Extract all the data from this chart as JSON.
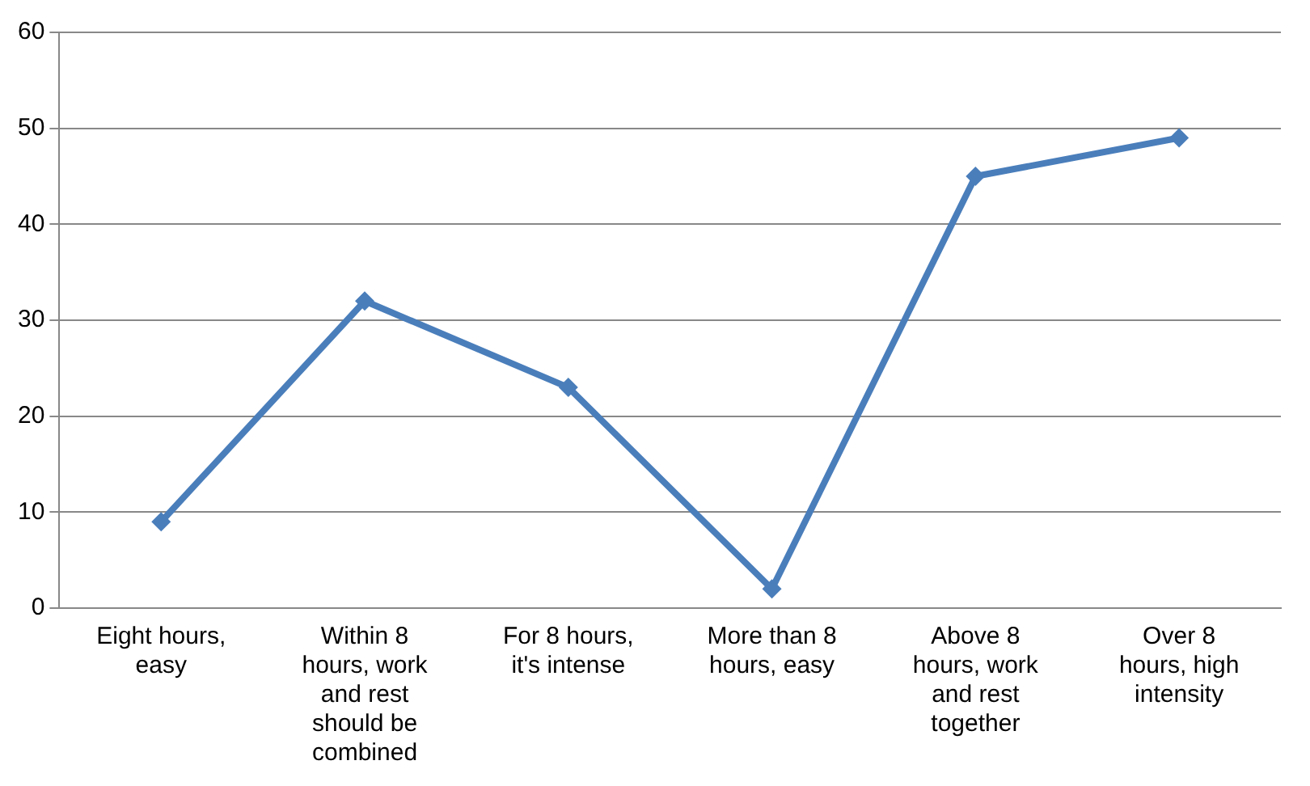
{
  "chart_data": {
    "type": "line",
    "categories": [
      "Eight hours, easy",
      "Within 8 hours, work and rest should be combined",
      "For 8 hours, it's intense",
      "More than 8 hours, easy",
      "Above 8 hours, work and rest together",
      "Over 8 hours, high intensity"
    ],
    "series": [
      {
        "color": "#4a7ebb",
        "values": [
          9,
          32,
          23,
          2,
          45,
          49
        ]
      }
    ],
    "ylim": [
      0,
      60
    ],
    "yticks": [
      0,
      10,
      20,
      30,
      40,
      50,
      60
    ],
    "grid": "y",
    "legend": false,
    "marker": "diamond",
    "line_style": "solid"
  }
}
